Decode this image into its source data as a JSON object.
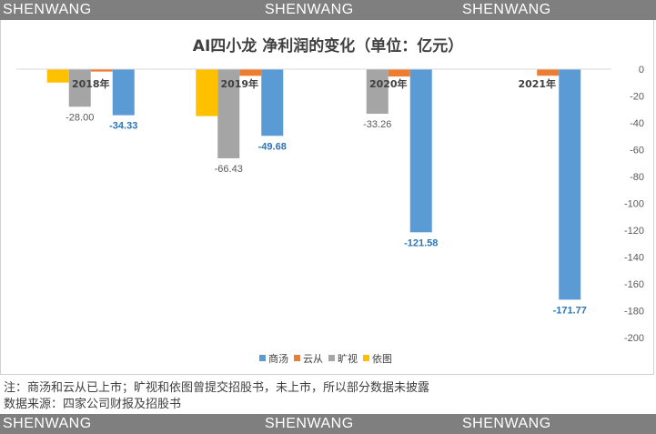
{
  "watermark": {
    "text": "SHENWANG"
  },
  "chart_data": {
    "type": "bar",
    "title": "AI四小龙 净利润的变化（单位：亿元）",
    "categories": [
      "2018年",
      "2019年",
      "2020年",
      "2021年"
    ],
    "series": [
      {
        "name": "商汤",
        "color": "#5b9bd5",
        "values": [
          -34.33,
          -49.68,
          -121.58,
          -171.77
        ]
      },
      {
        "name": "云从",
        "color": "#ed7d31",
        "values": [
          -1.8,
          -5.0,
          -5.5,
          -4.9
        ]
      },
      {
        "name": "旷视",
        "color": "#a5a5a5",
        "values": [
          -28.0,
          -66.43,
          -33.26,
          null
        ]
      },
      {
        "name": "依图",
        "color": "#ffc000",
        "values": [
          -10.0,
          -35.0,
          null,
          null
        ]
      }
    ],
    "labeled_series": [
      "商汤",
      "旷视"
    ],
    "ylim": [
      -200,
      0
    ],
    "yticks": [
      0,
      -20,
      -40,
      -60,
      -80,
      -100,
      -120,
      -140,
      -160,
      -180,
      -200
    ],
    "grid": false,
    "legend_position": "bottom"
  },
  "notes": {
    "line1": "注：商汤和云从已上市；旷视和依图曾提交招股书，未上市，所以部分数据未披露",
    "line2": "数据来源：四家公司财报及招股书"
  }
}
